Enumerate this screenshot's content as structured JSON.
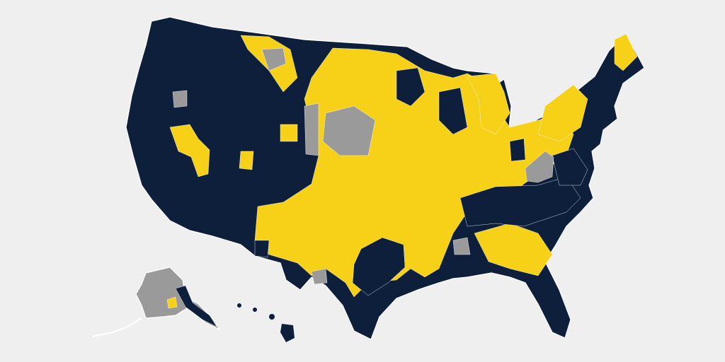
{
  "map": {
    "colors": {
      "background": "#efefef",
      "category_dark": "#0e1f3c",
      "category_yellow": "#f7d117",
      "category_gray": "#9a9a9a",
      "borders": "#ffffff"
    }
  }
}
